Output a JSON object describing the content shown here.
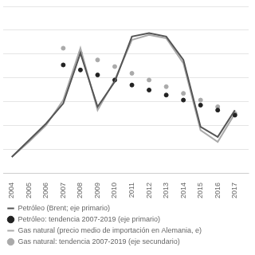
{
  "chart_data": {
    "type": "line",
    "x": [
      2004,
      2005,
      2006,
      2007,
      2008,
      2009,
      2010,
      2011,
      2012,
      2013,
      2014,
      2015,
      2016,
      2017
    ],
    "series": [
      {
        "name": "Petróleo (Brent; eje primario)",
        "type": "line",
        "color": "#555555",
        "values": [
          0.1,
          0.2,
          0.3,
          0.42,
          0.72,
          0.4,
          0.55,
          0.82,
          0.84,
          0.82,
          0.68,
          0.28,
          0.22,
          0.38
        ]
      },
      {
        "name": "Petróleo: tendencia 2007-2019 (eje primario)",
        "type": "scatter",
        "marker": "circle",
        "color": "#222222",
        "values": [
          null,
          null,
          null,
          0.65,
          0.62,
          0.59,
          0.56,
          0.53,
          0.5,
          0.47,
          0.44,
          0.41,
          0.38,
          0.35
        ]
      },
      {
        "name": "Gas natural (precio medio de importación en Alemania, e)",
        "type": "line",
        "color": "#aaaaaa",
        "values": [
          0.1,
          0.19,
          0.29,
          0.44,
          0.75,
          0.38,
          0.56,
          0.8,
          0.83,
          0.81,
          0.66,
          0.26,
          0.19,
          0.36
        ]
      },
      {
        "name": "Gas natural: tendencia 2007-2019 (eje secundario)",
        "type": "scatter",
        "marker": "circle",
        "color": "#aaaaaa",
        "values": [
          null,
          null,
          null,
          0.75,
          0.72,
          0.68,
          0.64,
          0.6,
          0.56,
          0.52,
          0.48,
          0.44,
          0.4,
          0.36
        ]
      }
    ],
    "xlim": [
      2003.5,
      2017.8
    ],
    "xticks": [
      2004,
      2005,
      2006,
      2007,
      2008,
      2009,
      2010,
      2011,
      2012,
      2013,
      2014,
      2015,
      2016,
      2017
    ],
    "ylim": [
      0,
      1
    ],
    "yticks": [
      0,
      0.14285714285714285,
      0.2857142857142857,
      0.42857142857142855,
      0.5714285714285714,
      0.7142857142857143,
      0.8571428571428571,
      1
    ],
    "grid": true,
    "tick_labels": "x",
    "legend": "bottom"
  }
}
